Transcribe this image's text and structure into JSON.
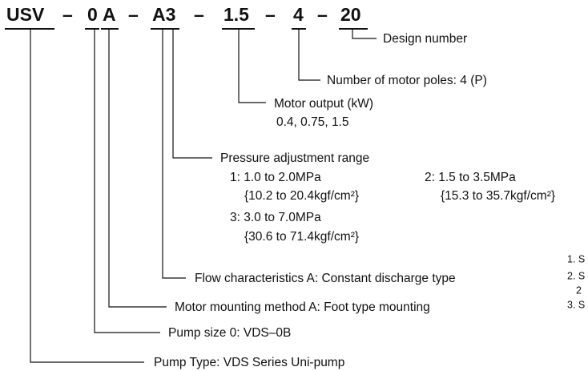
{
  "code": [
    "USV",
    "0",
    "A",
    "A3",
    "1.5",
    "4",
    "20"
  ],
  "separators": [
    "–",
    "–",
    "–",
    "–",
    "–"
  ],
  "labels": {
    "design": "Design number",
    "poles": "Number of motor poles: 4 (P)",
    "output": {
      "title": "Motor output (kW)",
      "values": "0.4, 0.75, 1.5"
    },
    "pressure": {
      "title": "Pressure adjustment range",
      "options": [
        {
          "range": "1: 1.0 to 2.0MPa",
          "kgf": "{10.2 to 20.4kgf/cm²}"
        },
        {
          "range": "2: 1.5 to 3.5MPa",
          "kgf": "{15.3 to 35.7kgf/cm²}"
        },
        {
          "range": "3: 3.0 to 7.0MPa",
          "kgf": "{30.6 to 71.4kgf/cm²}"
        }
      ]
    },
    "flow": "Flow characteristics A: Constant discharge type",
    "mounting": "Motor mounting method  A: Foot type mounting",
    "size": "Pump size  0: VDS–0B",
    "type": "Pump Type: VDS Series Uni-pump"
  },
  "side_notes": [
    "1. S",
    "2. S",
    "2",
    "3. S"
  ]
}
